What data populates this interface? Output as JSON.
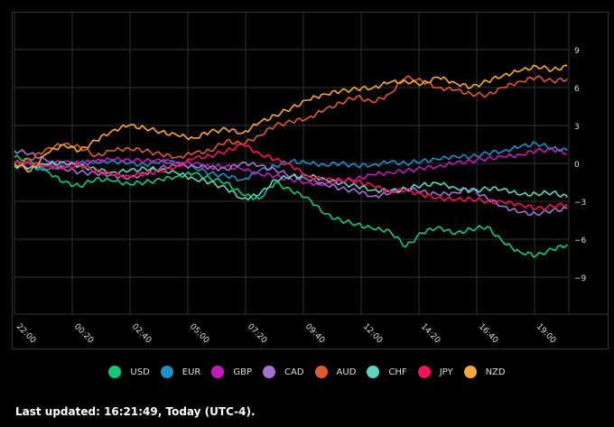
{
  "chart_data": {
    "type": "line",
    "title": "",
    "xlabel": "",
    "ylabel": "",
    "x_tick_labels": [
      "22:00",
      "00:20",
      "02:40",
      "05:00",
      "07:20",
      "09:40",
      "12:00",
      "14:20",
      "16:40",
      "19:00"
    ],
    "y_ticks": [
      9,
      6,
      3,
      0,
      -3,
      -6,
      -9
    ],
    "ylim": [
      -12,
      12
    ],
    "grid": true,
    "legend_position": "bottom",
    "x": [
      "22:00",
      "22:40",
      "23:20",
      "00:00",
      "00:40",
      "01:20",
      "02:00",
      "02:40",
      "03:20",
      "04:00",
      "04:40",
      "05:20",
      "06:00",
      "06:40",
      "07:20",
      "08:00",
      "08:40",
      "09:20",
      "10:00",
      "10:40",
      "11:20",
      "12:00",
      "12:40",
      "13:20",
      "14:00",
      "14:40",
      "15:20",
      "16:00",
      "16:40",
      "17:20",
      "18:00",
      "18:40",
      "19:20",
      "20:00",
      "20:25"
    ],
    "series": [
      {
        "name": "USD",
        "color": "#10c97a",
        "values": [
          0.5,
          0.2,
          -0.6,
          -1.5,
          -1.8,
          -1.2,
          -1.4,
          -1.6,
          -1.5,
          -1.3,
          -1.0,
          -0.8,
          -1.2,
          -1.5,
          -2.5,
          -2.8,
          -1.5,
          -2.2,
          -2.7,
          -4.0,
          -4.5,
          -4.8,
          -5.2,
          -5.3,
          -6.6,
          -5.5,
          -5.0,
          -5.6,
          -5.2,
          -5.0,
          -6.3,
          -7.0,
          -7.3,
          -6.8,
          -6.4
        ]
      },
      {
        "name": "EUR",
        "color": "#1f8fc7",
        "values": [
          0.0,
          -0.3,
          -0.5,
          -0.2,
          0.0,
          0.1,
          0.2,
          0.0,
          -0.1,
          0.2,
          0.0,
          -0.3,
          -0.8,
          -1.0,
          -1.3,
          -0.6,
          -0.2,
          0.2,
          0.0,
          -0.1,
          0.0,
          -0.2,
          -0.1,
          0.1,
          0.0,
          0.2,
          0.3,
          0.6,
          0.5,
          0.8,
          1.0,
          1.3,
          1.6,
          1.2,
          1.0
        ]
      },
      {
        "name": "GBP",
        "color": "#c41ab8",
        "values": [
          0.0,
          -0.1,
          0.0,
          0.1,
          0.0,
          0.2,
          0.3,
          0.3,
          0.2,
          0.2,
          0.1,
          0.0,
          -0.3,
          -0.2,
          -0.5,
          -0.8,
          -1.0,
          -1.3,
          -1.5,
          -1.7,
          -1.4,
          -1.2,
          -0.9,
          -0.7,
          -0.6,
          -0.4,
          -0.2,
          0.0,
          0.2,
          0.4,
          0.5,
          0.7,
          1.0,
          1.1,
          0.8
        ]
      },
      {
        "name": "CAD",
        "color": "#a472cf",
        "values": [
          1.0,
          0.8,
          0.2,
          -0.4,
          -0.7,
          -0.8,
          -0.9,
          -1.2,
          -0.8,
          -0.3,
          -0.2,
          -0.2,
          -0.3,
          -0.5,
          0.1,
          -0.2,
          -0.5,
          -1.0,
          -1.3,
          -1.6,
          -2.0,
          -2.2,
          -2.6,
          -2.4,
          -2.0,
          -2.2,
          -2.5,
          -2.3,
          -2.0,
          -2.8,
          -3.4,
          -3.9,
          -4.0,
          -3.7,
          -3.6
        ]
      },
      {
        "name": "AUD",
        "color": "#e05a2b",
        "values": [
          0.0,
          0.3,
          1.2,
          1.5,
          1.3,
          0.6,
          1.0,
          1.2,
          1.0,
          0.7,
          0.5,
          0.8,
          1.0,
          1.8,
          1.5,
          2.2,
          3.0,
          3.3,
          3.6,
          4.2,
          4.8,
          5.3,
          4.8,
          5.5,
          6.8,
          6.5,
          6.0,
          5.8,
          5.5,
          5.4,
          6.0,
          6.5,
          6.8,
          6.5,
          6.7
        ]
      },
      {
        "name": "CHF",
        "color": "#5fd4c2",
        "values": [
          -0.2,
          -0.3,
          -0.1,
          0.1,
          -0.2,
          -0.5,
          -0.7,
          -0.6,
          -0.4,
          -0.5,
          -0.8,
          -1.2,
          -1.5,
          -2.0,
          -2.8,
          -2.5,
          -1.3,
          -1.0,
          -1.0,
          -1.2,
          -1.6,
          -1.8,
          -2.1,
          -2.2,
          -2.0,
          -1.7,
          -1.6,
          -1.9,
          -2.2,
          -2.0,
          -2.0,
          -2.5,
          -2.4,
          -2.3,
          -2.7
        ]
      },
      {
        "name": "JPY",
        "color": "#f5125a",
        "values": [
          0.0,
          0.0,
          -0.2,
          -0.4,
          -0.1,
          -0.6,
          -0.9,
          -1.0,
          -0.8,
          -0.6,
          -0.2,
          0.4,
          0.6,
          1.0,
          1.5,
          0.8,
          0.3,
          -0.2,
          -1.0,
          -1.3,
          -1.3,
          -1.4,
          -1.8,
          -2.2,
          -2.1,
          -2.5,
          -2.7,
          -2.9,
          -2.8,
          -3.0,
          -3.1,
          -3.2,
          -3.6,
          -3.4,
          -3.2
        ]
      },
      {
        "name": "NZD",
        "color": "#f9a63a",
        "values": [
          0.0,
          -0.6,
          0.8,
          1.5,
          1.0,
          1.8,
          2.6,
          3.0,
          2.8,
          2.5,
          2.2,
          2.0,
          2.5,
          2.7,
          2.4,
          3.2,
          3.8,
          4.4,
          5.0,
          5.5,
          5.7,
          5.9,
          6.0,
          6.4,
          6.5,
          6.3,
          6.8,
          6.4,
          6.0,
          6.5,
          7.0,
          7.3,
          7.7,
          7.4,
          7.7
        ]
      }
    ]
  },
  "legend": [
    {
      "label": "USD",
      "color": "#10c97a"
    },
    {
      "label": "EUR",
      "color": "#1f8fc7"
    },
    {
      "label": "GBP",
      "color": "#c41ab8"
    },
    {
      "label": "CAD",
      "color": "#a472cf"
    },
    {
      "label": "AUD",
      "color": "#e05a2b"
    },
    {
      "label": "CHF",
      "color": "#5fd4c2"
    },
    {
      "label": "JPY",
      "color": "#f5125a"
    },
    {
      "label": "NZD",
      "color": "#f9a63a"
    }
  ],
  "footer": {
    "text": "Last updated: 16:21:49, Today (UTC-4)."
  }
}
